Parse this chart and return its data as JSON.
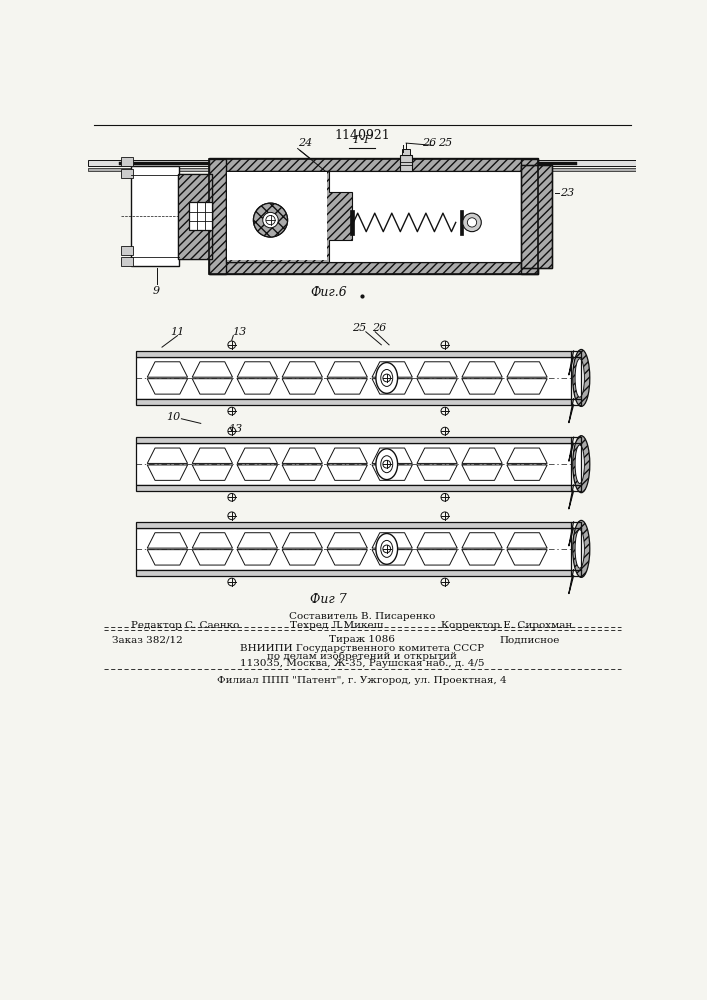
{
  "patent_number": "1140921",
  "bg_color": "#f5f5f0",
  "fig6_caption": "Фиг.6",
  "fig7_caption": "Фиг 7",
  "footer_line_sestavitel": "Составитель В. Писаренко",
  "footer_line_redaktor": "Редактор С. Саенко",
  "footer_line_tekhred": "Техред Л.Микеш",
  "footer_line_korrektor": "Корректор Е. Сирохман",
  "footer_zakaz": "Заказ 382/12",
  "footer_tirazh": "Тираж 1086",
  "footer_podpisnoe": "Подписное",
  "footer_vniip1": "ВНИИПИ Государственного комитета СССР",
  "footer_vniip2": "по делам изобретений и открытий",
  "footer_vniip3": "113035, Москва, Ж-35, Раушская наб., д. 4/5",
  "footer_filial": "Филиал ППП \"Патент\", г. Ужгород, ул. Проектная, 4",
  "label_GG": "Г-Г"
}
